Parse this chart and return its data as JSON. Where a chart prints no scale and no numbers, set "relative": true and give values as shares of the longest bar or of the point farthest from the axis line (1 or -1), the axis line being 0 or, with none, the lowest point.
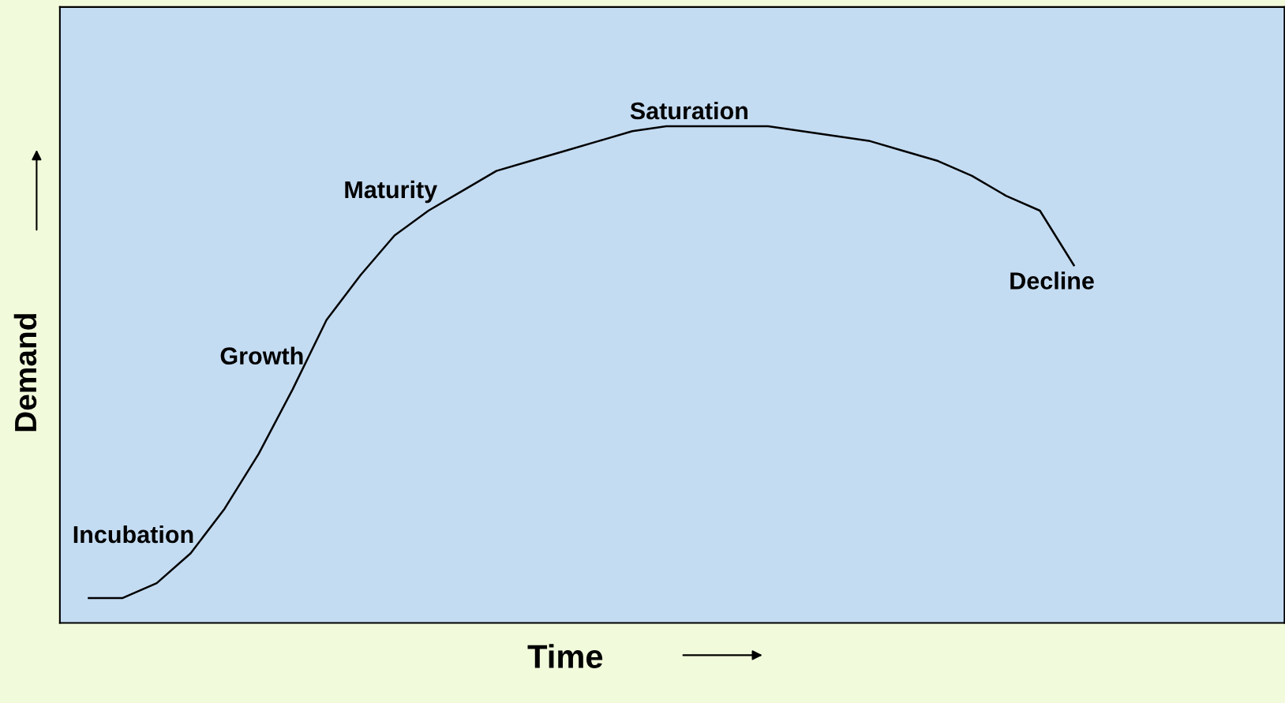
{
  "chart_data": {
    "type": "line",
    "relative": true,
    "xlabel": "Time",
    "ylabel": "Demand",
    "categories": [
      null,
      null,
      null,
      null,
      null,
      null,
      null,
      null,
      null,
      null,
      null,
      null,
      null,
      null,
      null,
      null,
      null,
      null,
      null,
      null,
      null,
      null,
      null,
      null,
      null,
      null,
      null,
      null,
      null,
      null
    ],
    "series": [
      {
        "color": "#000000",
        "values": [
          0.05,
          0.05,
          0.08,
          0.14,
          0.23,
          0.34,
          0.47,
          0.61,
          0.7,
          0.78,
          0.83,
          0.87,
          0.91,
          0.93,
          0.95,
          0.97,
          0.99,
          1.0,
          1.0,
          1.0,
          1.0,
          0.99,
          0.98,
          0.97,
          0.95,
          0.93,
          0.9,
          0.86,
          0.83,
          0.72
        ]
      }
    ],
    "annotations": [
      "Incubation",
      "Growth",
      "Maturity",
      "Saturation",
      "Decline"
    ],
    "grid": false,
    "marker": "none",
    "line_style": "solid"
  }
}
